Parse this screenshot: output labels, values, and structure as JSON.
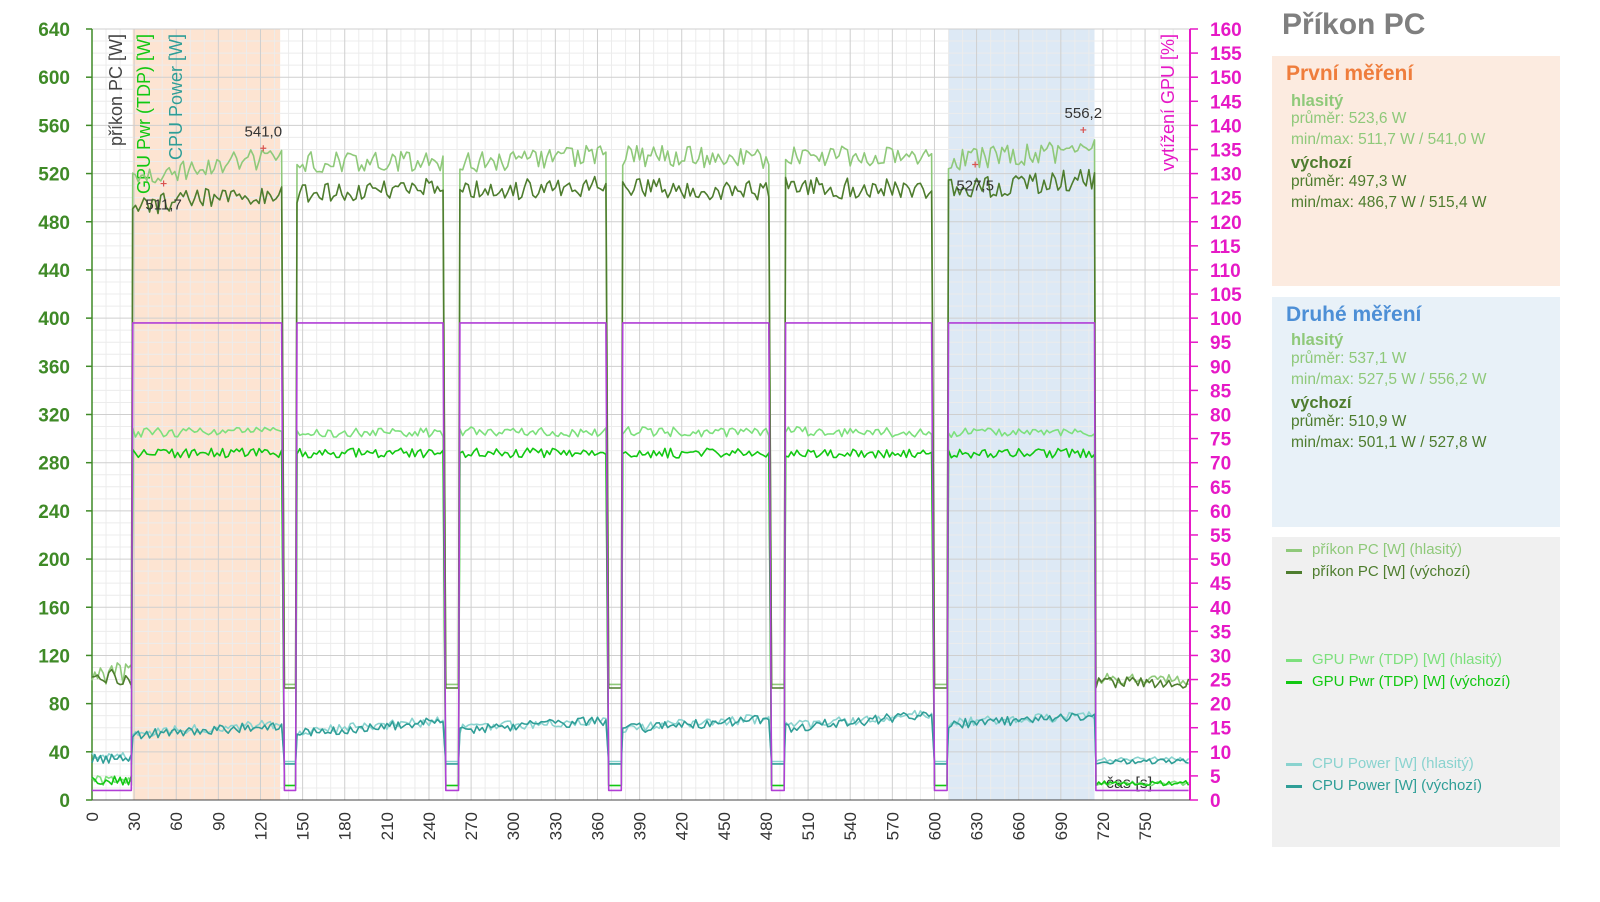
{
  "panel": {
    "title": "Příkon PC",
    "first": {
      "heading": "První měření",
      "loud_label": "hlasitý",
      "loud_avg": "průměr: 523,6 W",
      "loud_minmax": "min/max: 511,7 W / 541,0 W",
      "default_label": "výchozí",
      "default_avg": "průměr: 497,3 W",
      "default_minmax": "min/max: 486,7 W / 515,4 W"
    },
    "second": {
      "heading": "Druhé měření",
      "loud_label": "hlasitý",
      "loud_avg": "průměr: 537,1 W",
      "loud_minmax": "min/max: 527,5 W / 556,2 W",
      "default_label": "výchozí",
      "default_avg": "průměr: 510,9 W",
      "default_minmax": "min/max: 501,1 W / 527,8 W"
    },
    "legend": [
      {
        "label": "příkon PC [W] (hlasitý)",
        "color": "#8fc97a"
      },
      {
        "label": "příkon PC [W] (výchozí)",
        "color": "#4e7d2e"
      },
      {
        "label": "GPU Pwr (TDP) [W] (hlasitý)",
        "color": "#7de07d"
      },
      {
        "label": "GPU Pwr (TDP) [W] (výchozí)",
        "color": "#12c812"
      },
      {
        "label": "CPU Power [W] (hlasitý)",
        "color": "#8ad3cf"
      },
      {
        "label": "CPU Power [W] (výchozí)",
        "color": "#2f9e97"
      }
    ]
  },
  "colors": {
    "pc_loud": "#8fc97a",
    "pc_default": "#4e7d2e",
    "gpu_loud": "#7de07d",
    "gpu_default": "#12c812",
    "cpu_loud": "#8ad3cf",
    "cpu_default": "#2f9e97",
    "gpu_load": "#b13fd6",
    "left_axis_text": "#3f8a27",
    "right_axis": "#e619c6",
    "first_measure": "#ef7d3c",
    "second_measure": "#4d8fd6",
    "first_band": "#fde4d2",
    "second_band": "#dde9f5"
  },
  "chart_data": {
    "type": "line",
    "title": "Příkon PC",
    "y_axis_labels": [
      "příkon PC [W]",
      "GPU Pwr (TDP) [W]",
      "CPU Power [W]"
    ],
    "y2_label": "vytížení GPU [%]",
    "x_label": "čas [s]",
    "xlim": [
      0,
      782
    ],
    "ylim": [
      0,
      640
    ],
    "y2lim": [
      0,
      160
    ],
    "x_ticks": [
      0,
      30,
      60,
      90,
      120,
      150,
      180,
      210,
      240,
      270,
      300,
      330,
      360,
      390,
      420,
      450,
      480,
      510,
      540,
      570,
      600,
      630,
      660,
      690,
      720,
      750
    ],
    "y_ticks": [
      0,
      40,
      80,
      120,
      160,
      200,
      240,
      280,
      320,
      360,
      400,
      440,
      480,
      520,
      560,
      600,
      640
    ],
    "y2_ticks": [
      0,
      5,
      10,
      15,
      20,
      25,
      30,
      35,
      40,
      45,
      50,
      55,
      60,
      65,
      70,
      75,
      80,
      85,
      90,
      95,
      100,
      105,
      110,
      115,
      120,
      125,
      130,
      135,
      140,
      145,
      150,
      155,
      160
    ],
    "grid": true,
    "shaded_ranges": [
      {
        "from": 29,
        "to": 134,
        "measure": "first"
      },
      {
        "from": 610,
        "to": 714,
        "measure": "second"
      }
    ],
    "runs": [
      [
        29,
        136
      ],
      [
        146,
        251
      ],
      [
        262,
        367
      ],
      [
        378,
        483
      ],
      [
        494,
        599
      ],
      [
        610,
        714
      ]
    ],
    "series": [
      {
        "name": "příkon PC [W] (hlasitý)",
        "key": "pc_loud",
        "load": [
          517,
          535,
          529,
          530,
          529,
          536,
          535,
          533,
          537,
          532,
          531,
          540
        ],
        "idle": 96
      },
      {
        "name": "příkon PC [W] (výchozí)",
        "key": "pc_default",
        "load": [
          492,
          506,
          503,
          508,
          505,
          509,
          508,
          507,
          510,
          505,
          506,
          516
        ],
        "idle": 93
      },
      {
        "name": "GPU Pwr (TDP) [W] (hlasitý)",
        "key": "gpu_loud",
        "load": [
          305,
          306,
          305,
          305,
          306,
          305,
          306,
          305,
          306,
          305,
          305,
          305
        ],
        "idle": 12
      },
      {
        "name": "GPU Pwr (TDP) [W] (výchozí)",
        "key": "gpu_default",
        "load": [
          288,
          288,
          288,
          288,
          288,
          288,
          288,
          288,
          288,
          288,
          288,
          288
        ],
        "idle": 12
      },
      {
        "name": "CPU Power [W] (hlasitý)",
        "key": "cpu_loud",
        "load": [
          56,
          63,
          57,
          66,
          59,
          67,
          60,
          68,
          61,
          72,
          64,
          70
        ],
        "idle": 32
      },
      {
        "name": "CPU Power [W] (výchozí)",
        "key": "cpu_default",
        "load": [
          54,
          62,
          56,
          65,
          58,
          66,
          59,
          67,
          60,
          71,
          63,
          69
        ],
        "idle": 30
      },
      {
        "name": "vytížení GPU [%]",
        "key": "gpu_load",
        "axis": "right",
        "load": [
          99,
          99,
          99,
          99,
          99,
          99,
          99,
          99,
          99,
          99,
          99,
          99
        ],
        "idle": 2
      }
    ],
    "annotations": [
      {
        "x": 122,
        "y": 541.0,
        "text": "541,0"
      },
      {
        "x": 51,
        "y": 511.7,
        "text": "511,7"
      },
      {
        "x": 706,
        "y": 556.2,
        "text": "556,2"
      },
      {
        "x": 629,
        "y": 527.5,
        "text": "527,5"
      }
    ]
  }
}
